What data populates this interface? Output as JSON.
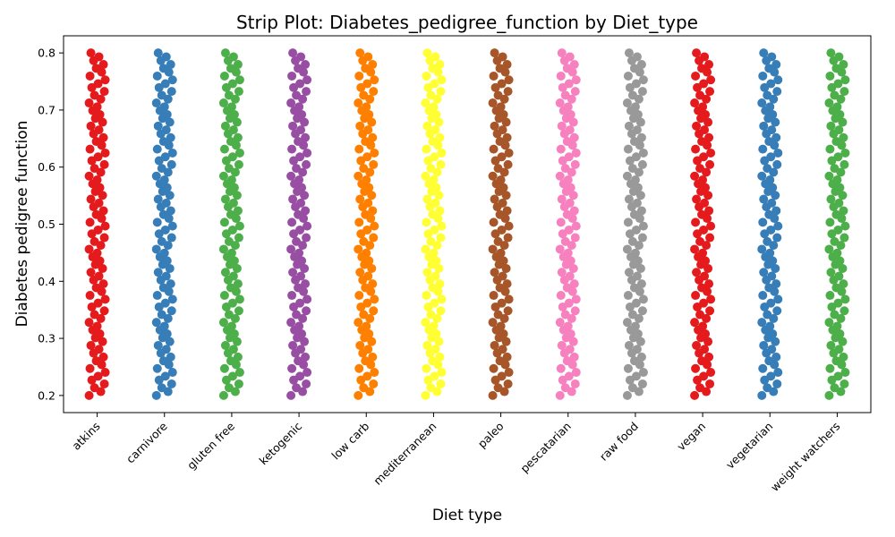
{
  "chart_data": {
    "type": "scatter",
    "title": "Strip Plot: Diabetes_pedigree_function by Diet_type",
    "xlabel": "Diet type",
    "ylabel": "Diabetes pedigree function",
    "categories": [
      "atkins",
      "carnivore",
      "gluten free",
      "ketogenic",
      "low carb",
      "mediterranean",
      "paleo",
      "pescatarian",
      "raw food",
      "vegan",
      "vegetarian",
      "weight watchers"
    ],
    "colors": [
      "#e41a1c",
      "#377eb8",
      "#4daf4a",
      "#984ea3",
      "#ff7f00",
      "#ffff33",
      "#a65628",
      "#f781bf",
      "#999999",
      "#e41a1c",
      "#377eb8",
      "#4daf4a"
    ],
    "series": [
      {
        "category": "atkins",
        "y_min": 0.2,
        "y_max": 0.8
      },
      {
        "category": "carnivore",
        "y_min": 0.2,
        "y_max": 0.8
      },
      {
        "category": "gluten free",
        "y_min": 0.2,
        "y_max": 0.8
      },
      {
        "category": "ketogenic",
        "y_min": 0.2,
        "y_max": 0.8
      },
      {
        "category": "low carb",
        "y_min": 0.2,
        "y_max": 0.8
      },
      {
        "category": "mediterranean",
        "y_min": 0.2,
        "y_max": 0.8
      },
      {
        "category": "paleo",
        "y_min": 0.2,
        "y_max": 0.8
      },
      {
        "category": "pescatarian",
        "y_min": 0.2,
        "y_max": 0.8
      },
      {
        "category": "raw food",
        "y_min": 0.2,
        "y_max": 0.8
      },
      {
        "category": "vegan",
        "y_min": 0.2,
        "y_max": 0.8
      },
      {
        "category": "vegetarian",
        "y_min": 0.2,
        "y_max": 0.8
      },
      {
        "category": "weight watchers",
        "y_min": 0.2,
        "y_max": 0.8
      }
    ],
    "yticks": [
      "0.2",
      "0.3",
      "0.4",
      "0.5",
      "0.6",
      "0.7",
      "0.8"
    ],
    "ylim": [
      0.17,
      0.83
    ],
    "grid": false,
    "legend": "none"
  }
}
